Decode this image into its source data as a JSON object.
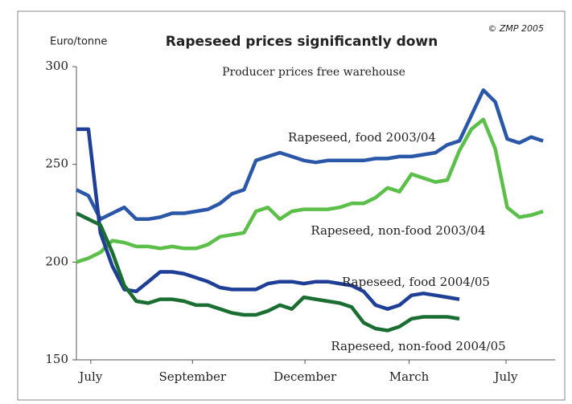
{
  "chart_data": {
    "type": "line",
    "title": "Rapeseed prices significantly down",
    "subtitle": "Producer prices free warehouse",
    "y_label": "Euro/tonne",
    "source": "© ZMP 2005",
    "xlim": [
      0,
      40
    ],
    "xticks": [
      {
        "value": 1.2,
        "label": "July"
      },
      {
        "value": 9.7,
        "label": "September"
      },
      {
        "value": 19.1,
        "label": "December"
      },
      {
        "value": 27.8,
        "label": "March"
      },
      {
        "value": 35.9,
        "label": "July"
      }
    ],
    "ylim": [
      150,
      300
    ],
    "yticks": [
      150,
      200,
      250,
      300
    ],
    "x": [
      0,
      1,
      2,
      3,
      4,
      5,
      6,
      7,
      8,
      9,
      10,
      11,
      12,
      13,
      14,
      15,
      16,
      17,
      18,
      19,
      20,
      21,
      22,
      23,
      24,
      25,
      26,
      27,
      28,
      29,
      30,
      31,
      32,
      33,
      34,
      35,
      36,
      37,
      38,
      39
    ],
    "series": [
      {
        "name": "Rapeseed, food 2003/04",
        "color": "#2a57a8",
        "values": [
          237,
          234,
          222,
          225,
          228,
          222,
          222,
          223,
          225,
          225,
          226,
          227,
          230,
          235,
          237,
          252,
          254,
          256,
          254,
          252,
          251,
          252,
          252,
          252,
          252,
          253,
          253,
          254,
          254,
          255,
          256,
          260,
          262,
          275,
          288,
          282,
          263,
          261,
          264,
          262
        ]
      },
      {
        "name": "Rapeseed, non-food 2003/04",
        "color": "#5cbf4a",
        "values": [
          200,
          202,
          205,
          211,
          210,
          208,
          208,
          207,
          208,
          207,
          207,
          209,
          213,
          214,
          215,
          226,
          228,
          222,
          226,
          227,
          227,
          227,
          228,
          230,
          230,
          233,
          238,
          236,
          245,
          243,
          241,
          242,
          257,
          268,
          273,
          258,
          228,
          223,
          224,
          226
        ]
      },
      {
        "name": "Rapeseed, food 2004/05",
        "color": "#1f3f96",
        "values": [
          268,
          268,
          215,
          198,
          186,
          185,
          190,
          195,
          195,
          194,
          192,
          190,
          187,
          186,
          186,
          186,
          189,
          190,
          190,
          189,
          190,
          190,
          189,
          188,
          185,
          178,
          176,
          178,
          183,
          184,
          183,
          182,
          181,
          null,
          null,
          null,
          null,
          null,
          null,
          null
        ]
      },
      {
        "name": "Rapeseed, non-food 2004/05",
        "color": "#1b6e32",
        "values": [
          225,
          222,
          219,
          205,
          188,
          180,
          179,
          181,
          181,
          180,
          178,
          178,
          176,
          174,
          173,
          173,
          175,
          178,
          176,
          182,
          181,
          180,
          179,
          177,
          169,
          166,
          165,
          167,
          171,
          172,
          172,
          172,
          171,
          null,
          null,
          null,
          null,
          null,
          null,
          null
        ]
      }
    ]
  }
}
